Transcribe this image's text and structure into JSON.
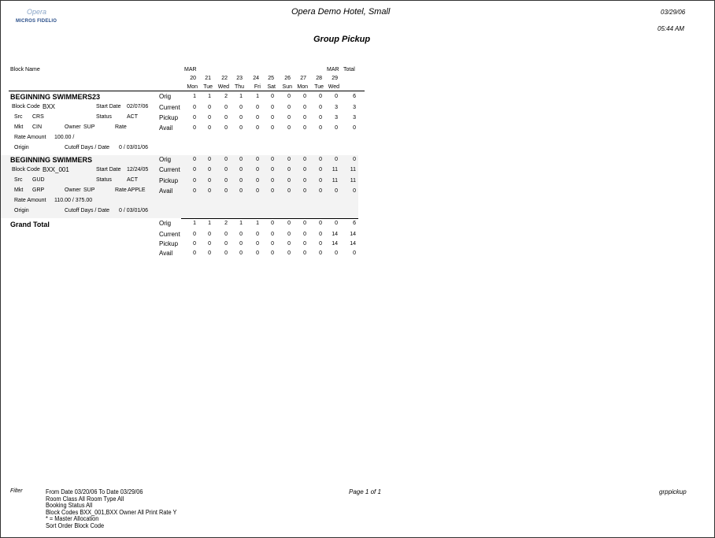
{
  "header": {
    "logo_top": "Opera",
    "logo_bottom": "MICROS FIDELIO",
    "hotel": "Opera Demo Hotel, Small",
    "date": "03/29/06",
    "time": "05:44 AM",
    "title": "Group Pickup"
  },
  "columns": {
    "block_name": "Block Name",
    "month_first": "MAR",
    "month_last": "MAR",
    "total": "Total",
    "days": [
      "20",
      "21",
      "22",
      "23",
      "24",
      "25",
      "26",
      "27",
      "28",
      "29"
    ],
    "weekdays": [
      "Mon",
      "Tue",
      "Wed",
      "Thu",
      "Fri",
      "Sat",
      "Sun",
      "Mon",
      "Tue",
      "Wed"
    ]
  },
  "row_labels": [
    "Orig",
    "Current",
    "Pickup",
    "Avail"
  ],
  "blocks": [
    {
      "name": "BEGINNING SWIMMERS23",
      "block_code_label": "Block Code",
      "block_code": "BXX",
      "start_date_label": "Start Date",
      "start_date": "02/07/06",
      "src_label": "Src",
      "src": "CRS",
      "status_label": "Status",
      "status": "ACT",
      "mkt_label": "Mkt",
      "mkt": "CIN",
      "owner_label": "Owner",
      "owner": "SUP",
      "rate_label": "Rate",
      "rate": "",
      "rate_amount_label": "Rate Amount",
      "rate_amount": "100.00 /",
      "origin_label": "Origin",
      "cutoff_label": "Cutoff Days / Date",
      "cutoff": "0  /  03/01/06",
      "rows": [
        [
          1,
          1,
          2,
          1,
          1,
          0,
          0,
          0,
          0,
          0,
          6
        ],
        [
          0,
          0,
          0,
          0,
          0,
          0,
          0,
          0,
          0,
          3,
          3
        ],
        [
          0,
          0,
          0,
          0,
          0,
          0,
          0,
          0,
          0,
          3,
          3
        ],
        [
          0,
          0,
          0,
          0,
          0,
          0,
          0,
          0,
          0,
          0,
          0
        ]
      ]
    },
    {
      "name": "BEGINNING SWIMMERS",
      "block_code_label": "Block Code",
      "block_code": "BXX_001",
      "start_date_label": "Start Date",
      "start_date": "12/24/05",
      "src_label": "Src",
      "src": "GUD",
      "status_label": "Status",
      "status": "ACT",
      "mkt_label": "Mkt",
      "mkt": "GRP",
      "owner_label": "Owner",
      "owner": "SUP",
      "rate_label": "Rate",
      "rate": "APPLE",
      "rate_amount_label": "Rate Amount",
      "rate_amount": "110.00 / 375.00",
      "origin_label": "Origin",
      "cutoff_label": "Cutoff Days / Date",
      "cutoff": "0  /  03/01/06",
      "rows": [
        [
          0,
          0,
          0,
          0,
          0,
          0,
          0,
          0,
          0,
          0,
          0
        ],
        [
          0,
          0,
          0,
          0,
          0,
          0,
          0,
          0,
          0,
          11,
          11
        ],
        [
          0,
          0,
          0,
          0,
          0,
          0,
          0,
          0,
          0,
          11,
          11
        ],
        [
          0,
          0,
          0,
          0,
          0,
          0,
          0,
          0,
          0,
          0,
          0
        ]
      ]
    }
  ],
  "grand_total": {
    "label": "Grand Total",
    "rows": [
      [
        1,
        1,
        2,
        1,
        1,
        0,
        0,
        0,
        0,
        0,
        6
      ],
      [
        0,
        0,
        0,
        0,
        0,
        0,
        0,
        0,
        0,
        14,
        14
      ],
      [
        0,
        0,
        0,
        0,
        0,
        0,
        0,
        0,
        0,
        14,
        14
      ],
      [
        0,
        0,
        0,
        0,
        0,
        0,
        0,
        0,
        0,
        0,
        0
      ]
    ]
  },
  "footer": {
    "filter_label": "Filter",
    "filters": [
      "From Date 03/20/06   To Date 03/29/06",
      "Room Class All   Room Type All",
      "Booking Status All",
      "Block Codes BXX_001,BXX   Owner All   Print Rate Y",
      "* = Master Allocation",
      "Sort Order Block Code"
    ],
    "page": "Page 1 of 1",
    "report_id": "grppickup"
  }
}
